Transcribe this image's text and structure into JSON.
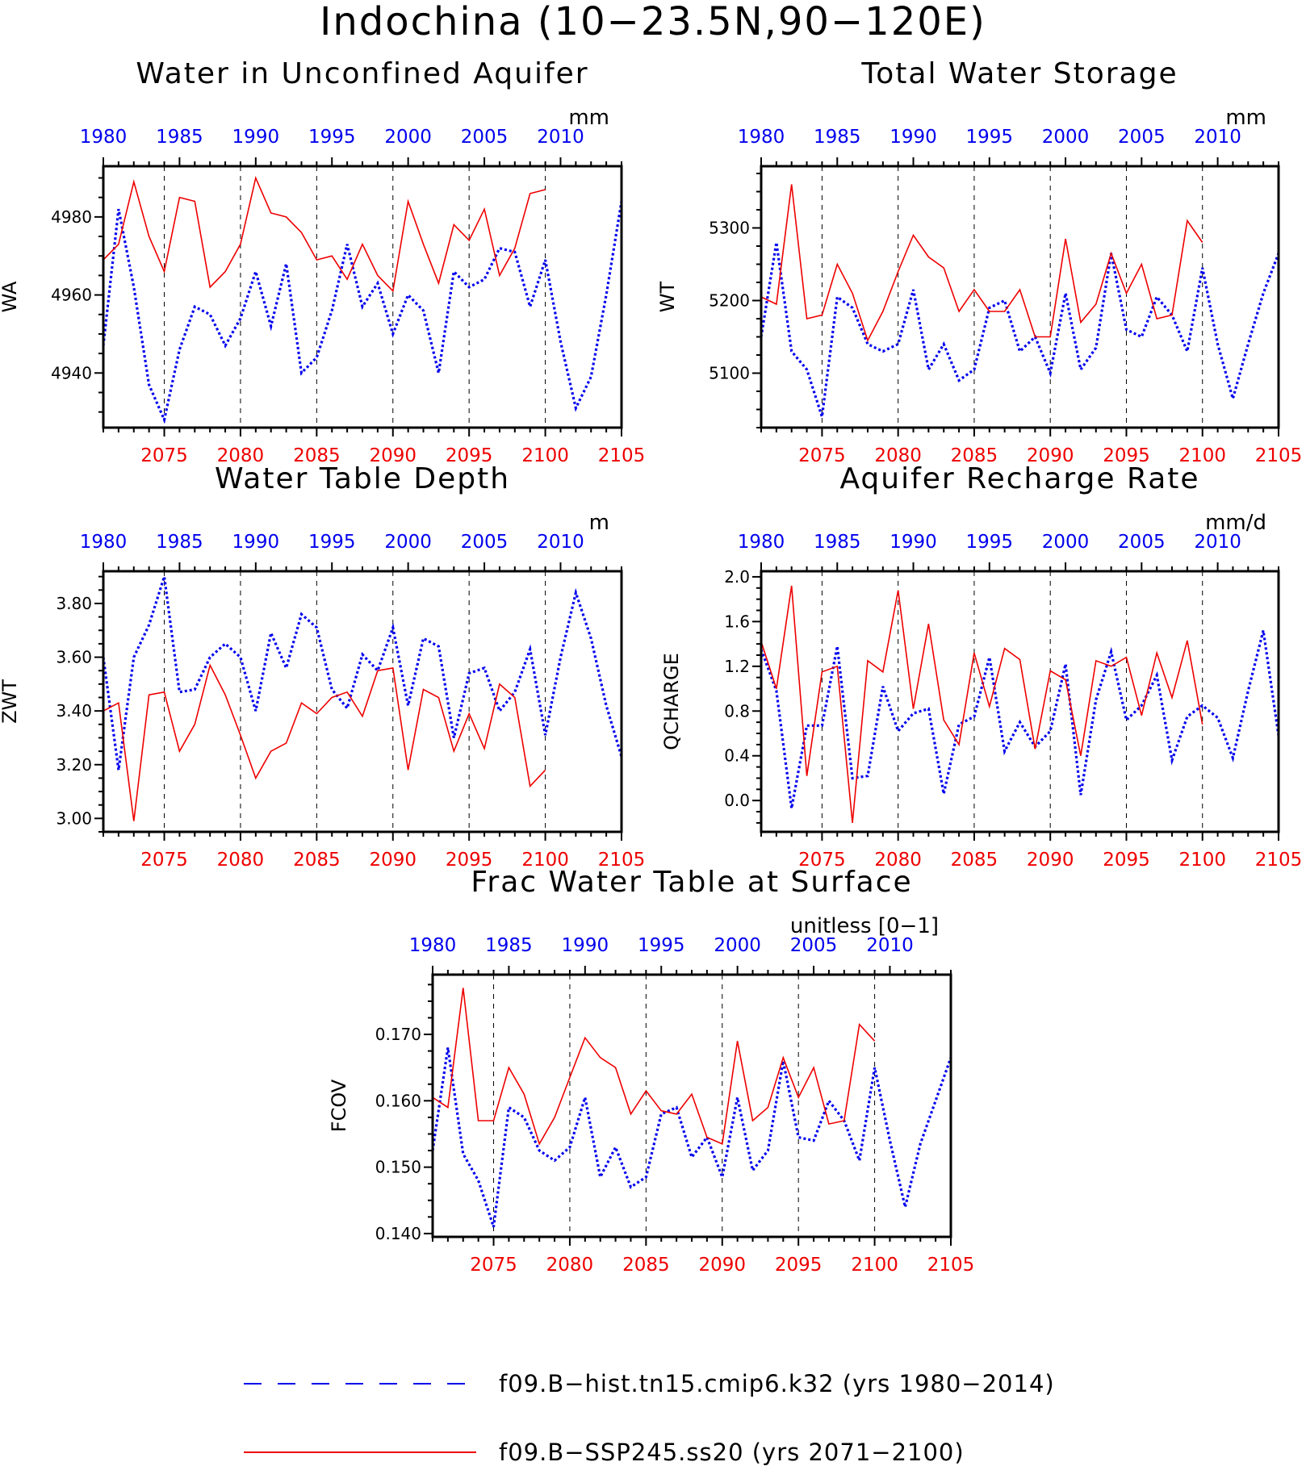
{
  "title": "Indochina (10−23.5N,90−120E)",
  "colors": {
    "hist": "#0000ee",
    "ssp": "#ee0000",
    "axis": "#000000"
  },
  "legend": [
    {
      "label": "f09.B−hist.tn15.cmip6.k32 (yrs 1980−2014)",
      "style": "dashed",
      "color": "#0000ee"
    },
    {
      "label": "f09.B−SSP245.ss20 (yrs 2071−2100)",
      "style": "solid",
      "color": "#ee0000"
    }
  ],
  "chart_data": [
    {
      "type": "line",
      "title": "Water in Unconfined Aquifer",
      "units": "mm",
      "ylabel": "WA",
      "ylim": [
        4926,
        4993
      ],
      "yticks": [
        4940,
        4960,
        4980
      ],
      "ytick_labels": [
        "4940",
        "4960",
        "4980"
      ],
      "bottom_axis": {
        "ticks": [
          2075,
          2080,
          2085,
          2090,
          2095,
          2100,
          2105
        ],
        "range": [
          2071,
          2105
        ],
        "color": "#ee0000"
      },
      "top_axis": {
        "ticks": [
          1980,
          1985,
          1990,
          1995,
          2000,
          2005,
          2010
        ],
        "range": [
          1980,
          2014
        ],
        "color": "#0000ee"
      },
      "series": [
        {
          "style": "dashed",
          "color": "#0000ee",
          "x_start": 1980,
          "values": [
            4947,
            4982,
            4962,
            4937,
            4928,
            4946,
            4957,
            4955,
            4947,
            4954,
            4966,
            4952,
            4968,
            4940,
            4944,
            4956,
            4973,
            4957,
            4963,
            4950,
            4960,
            4956,
            4940,
            4966,
            4962,
            4964,
            4972,
            4971,
            4957,
            4969,
            4948,
            4931,
            4939,
            4960,
            4984
          ]
        },
        {
          "style": "solid",
          "color": "#ee0000",
          "x_start": 2071,
          "values": [
            4969,
            4973,
            4989,
            4975,
            4966,
            4985,
            4984,
            4962,
            4966,
            4973,
            4990,
            4981,
            4980,
            4976,
            4969,
            4970,
            4964,
            4973,
            4965,
            4961,
            4984,
            4973,
            4963,
            4978,
            4974,
            4982,
            4965,
            4972,
            4986,
            4987
          ]
        }
      ]
    },
    {
      "type": "line",
      "title": "Total Water Storage",
      "units": "mm",
      "ylabel": "WT",
      "ylim": [
        5025,
        5385
      ],
      "yticks": [
        5100,
        5200,
        5300
      ],
      "ytick_labels": [
        "5100",
        "5200",
        "5300"
      ],
      "bottom_axis": {
        "ticks": [
          2075,
          2080,
          2085,
          2090,
          2095,
          2100,
          2105
        ],
        "range": [
          2071,
          2105
        ],
        "color": "#ee0000"
      },
      "top_axis": {
        "ticks": [
          1980,
          1985,
          1990,
          1995,
          2000,
          2005,
          2010
        ],
        "range": [
          1980,
          2014
        ],
        "color": "#0000ee"
      },
      "series": [
        {
          "style": "dashed",
          "color": "#0000ee",
          "x_start": 1980,
          "values": [
            5150,
            5280,
            5130,
            5105,
            5040,
            5205,
            5190,
            5140,
            5130,
            5140,
            5215,
            5105,
            5140,
            5090,
            5105,
            5190,
            5200,
            5130,
            5150,
            5100,
            5210,
            5105,
            5135,
            5265,
            5160,
            5150,
            5205,
            5180,
            5130,
            5245,
            5140,
            5065,
            5140,
            5210,
            5265
          ]
        },
        {
          "style": "solid",
          "color": "#ee0000",
          "x_start": 2071,
          "values": [
            5205,
            5195,
            5360,
            5175,
            5180,
            5250,
            5210,
            5145,
            5185,
            5240,
            5290,
            5260,
            5245,
            5185,
            5215,
            5185,
            5185,
            5215,
            5150,
            5150,
            5285,
            5170,
            5195,
            5265,
            5210,
            5250,
            5175,
            5180,
            5310,
            5280
          ]
        }
      ]
    },
    {
      "type": "line",
      "title": "Water Table Depth",
      "units": "m",
      "ylabel": "ZWT",
      "ylim": [
        2.95,
        3.92
      ],
      "yticks": [
        3.0,
        3.2,
        3.4,
        3.6,
        3.8
      ],
      "ytick_labels": [
        "3.00",
        "3.20",
        "3.40",
        "3.60",
        "3.80"
      ],
      "bottom_axis": {
        "ticks": [
          2075,
          2080,
          2085,
          2090,
          2095,
          2100,
          2105
        ],
        "range": [
          2071,
          2105
        ],
        "color": "#ee0000"
      },
      "top_axis": {
        "ticks": [
          1980,
          1985,
          1990,
          1995,
          2000,
          2005,
          2010
        ],
        "range": [
          1980,
          2014
        ],
        "color": "#0000ee"
      },
      "series": [
        {
          "style": "dashed",
          "color": "#0000ee",
          "x_start": 1980,
          "values": [
            3.6,
            3.18,
            3.6,
            3.72,
            3.9,
            3.47,
            3.48,
            3.6,
            3.65,
            3.6,
            3.4,
            3.69,
            3.56,
            3.76,
            3.71,
            3.48,
            3.41,
            3.61,
            3.55,
            3.71,
            3.42,
            3.67,
            3.64,
            3.3,
            3.54,
            3.56,
            3.4,
            3.47,
            3.63,
            3.31,
            3.6,
            3.84,
            3.67,
            3.42,
            3.23
          ]
        },
        {
          "style": "solid",
          "color": "#ee0000",
          "x_start": 2071,
          "values": [
            3.4,
            3.43,
            2.99,
            3.46,
            3.47,
            3.25,
            3.35,
            3.57,
            3.46,
            3.31,
            3.15,
            3.25,
            3.28,
            3.43,
            3.39,
            3.45,
            3.47,
            3.38,
            3.55,
            3.56,
            3.18,
            3.48,
            3.45,
            3.25,
            3.39,
            3.26,
            3.5,
            3.45,
            3.12,
            3.18
          ]
        }
      ]
    },
    {
      "type": "line",
      "title": "Aquifer Recharge Rate",
      "units": "mm/d",
      "ylabel": "QCHARGE",
      "ylim": [
        -0.28,
        2.05
      ],
      "yticks": [
        0.0,
        0.4,
        0.8,
        1.2,
        1.6,
        2.0
      ],
      "ytick_labels": [
        "0.0",
        "0.4",
        "0.8",
        "1.2",
        "1.6",
        "2.0"
      ],
      "bottom_axis": {
        "ticks": [
          2075,
          2080,
          2085,
          2090,
          2095,
          2100,
          2105
        ],
        "range": [
          2071,
          2105
        ],
        "color": "#ee0000"
      },
      "top_axis": {
        "ticks": [
          1980,
          1985,
          1990,
          1995,
          2000,
          2005,
          2010
        ],
        "range": [
          1980,
          2014
        ],
        "color": "#0000ee"
      },
      "series": [
        {
          "style": "dashed",
          "color": "#0000ee",
          "x_start": 1980,
          "values": [
            1.35,
            0.98,
            -0.07,
            0.67,
            0.67,
            1.38,
            0.2,
            0.22,
            1.02,
            0.62,
            0.78,
            0.82,
            0.06,
            0.68,
            0.75,
            1.28,
            0.44,
            0.7,
            0.48,
            0.62,
            1.22,
            0.05,
            0.9,
            1.33,
            0.72,
            0.85,
            1.12,
            0.36,
            0.75,
            0.85,
            0.74,
            0.38,
            0.98,
            1.52,
            0.58
          ]
        },
        {
          "style": "solid",
          "color": "#ee0000",
          "x_start": 2071,
          "values": [
            1.42,
            1.0,
            1.92,
            0.22,
            1.15,
            1.2,
            -0.2,
            1.25,
            1.15,
            1.88,
            0.82,
            1.58,
            0.72,
            0.5,
            1.32,
            0.84,
            1.36,
            1.26,
            0.46,
            1.16,
            1.08,
            0.4,
            1.25,
            1.2,
            1.28,
            0.76,
            1.32,
            0.92,
            1.43,
            0.68
          ]
        }
      ]
    },
    {
      "type": "line",
      "title": "Frac Water Table at Surface",
      "units": "unitless [0−1]",
      "ylabel": "FCOV",
      "ylim": [
        0.1395,
        0.179
      ],
      "yticks": [
        0.14,
        0.15,
        0.16,
        0.17
      ],
      "ytick_labels": [
        "0.140",
        "0.150",
        "0.160",
        "0.170"
      ],
      "bottom_axis": {
        "ticks": [
          2075,
          2080,
          2085,
          2090,
          2095,
          2100,
          2105
        ],
        "range": [
          2071,
          2105
        ],
        "color": "#ee0000"
      },
      "top_axis": {
        "ticks": [
          1980,
          1985,
          1990,
          1995,
          2000,
          2005,
          2010
        ],
        "range": [
          1980,
          2014
        ],
        "color": "#0000ee"
      },
      "series": [
        {
          "style": "dashed",
          "color": "#0000ee",
          "x_start": 1980,
          "values": [
            0.1525,
            0.168,
            0.152,
            0.148,
            0.141,
            0.159,
            0.1575,
            0.1525,
            0.151,
            0.153,
            0.1605,
            0.1485,
            0.153,
            0.147,
            0.1485,
            0.158,
            0.159,
            0.1515,
            0.1545,
            0.1485,
            0.1605,
            0.1495,
            0.1525,
            0.166,
            0.1545,
            0.154,
            0.16,
            0.157,
            0.151,
            0.165,
            0.154,
            0.144,
            0.1535,
            0.16,
            0.1665
          ]
        },
        {
          "style": "solid",
          "color": "#ee0000",
          "x_start": 2071,
          "values": [
            0.1605,
            0.159,
            0.177,
            0.157,
            0.157,
            0.165,
            0.161,
            0.1535,
            0.1575,
            0.1635,
            0.1695,
            0.1665,
            0.165,
            0.158,
            0.1615,
            0.1585,
            0.158,
            0.161,
            0.1545,
            0.1535,
            0.169,
            0.157,
            0.159,
            0.1665,
            0.1605,
            0.165,
            0.1565,
            0.157,
            0.1715,
            0.169
          ]
        }
      ]
    }
  ]
}
